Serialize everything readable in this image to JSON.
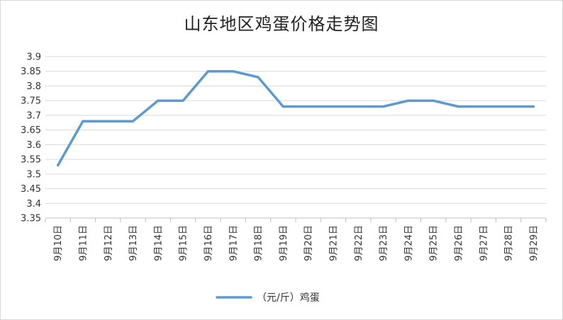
{
  "chart_data": {
    "type": "line",
    "title": "山东地区鸡蛋价格走势图",
    "categories": [
      "9月10日",
      "9月11日",
      "9月12日",
      "9月13日",
      "9月14日",
      "9月15日",
      "9月16日",
      "9月17日",
      "9月18日",
      "9月19日",
      "9月20日",
      "9月21日",
      "9月22日",
      "9月23日",
      "9月24日",
      "9月25日",
      "9月26日",
      "9月27日",
      "9月28日",
      "9月29日"
    ],
    "series": [
      {
        "name": "（元/斤）鸡蛋",
        "color": "#5b9bd5",
        "values": [
          3.53,
          3.68,
          3.68,
          3.68,
          3.75,
          3.75,
          3.85,
          3.85,
          3.83,
          3.73,
          3.73,
          3.73,
          3.73,
          3.73,
          3.75,
          3.75,
          3.73,
          3.73,
          3.73,
          3.73
        ]
      }
    ],
    "ylim": [
      3.35,
      3.9
    ],
    "yticks": [
      "3.35",
      "3.4",
      "3.45",
      "3.5",
      "3.55",
      "3.6",
      "3.65",
      "3.7",
      "3.75",
      "3.8",
      "3.85",
      "3.9"
    ],
    "grid": true,
    "legend": "bottom"
  }
}
